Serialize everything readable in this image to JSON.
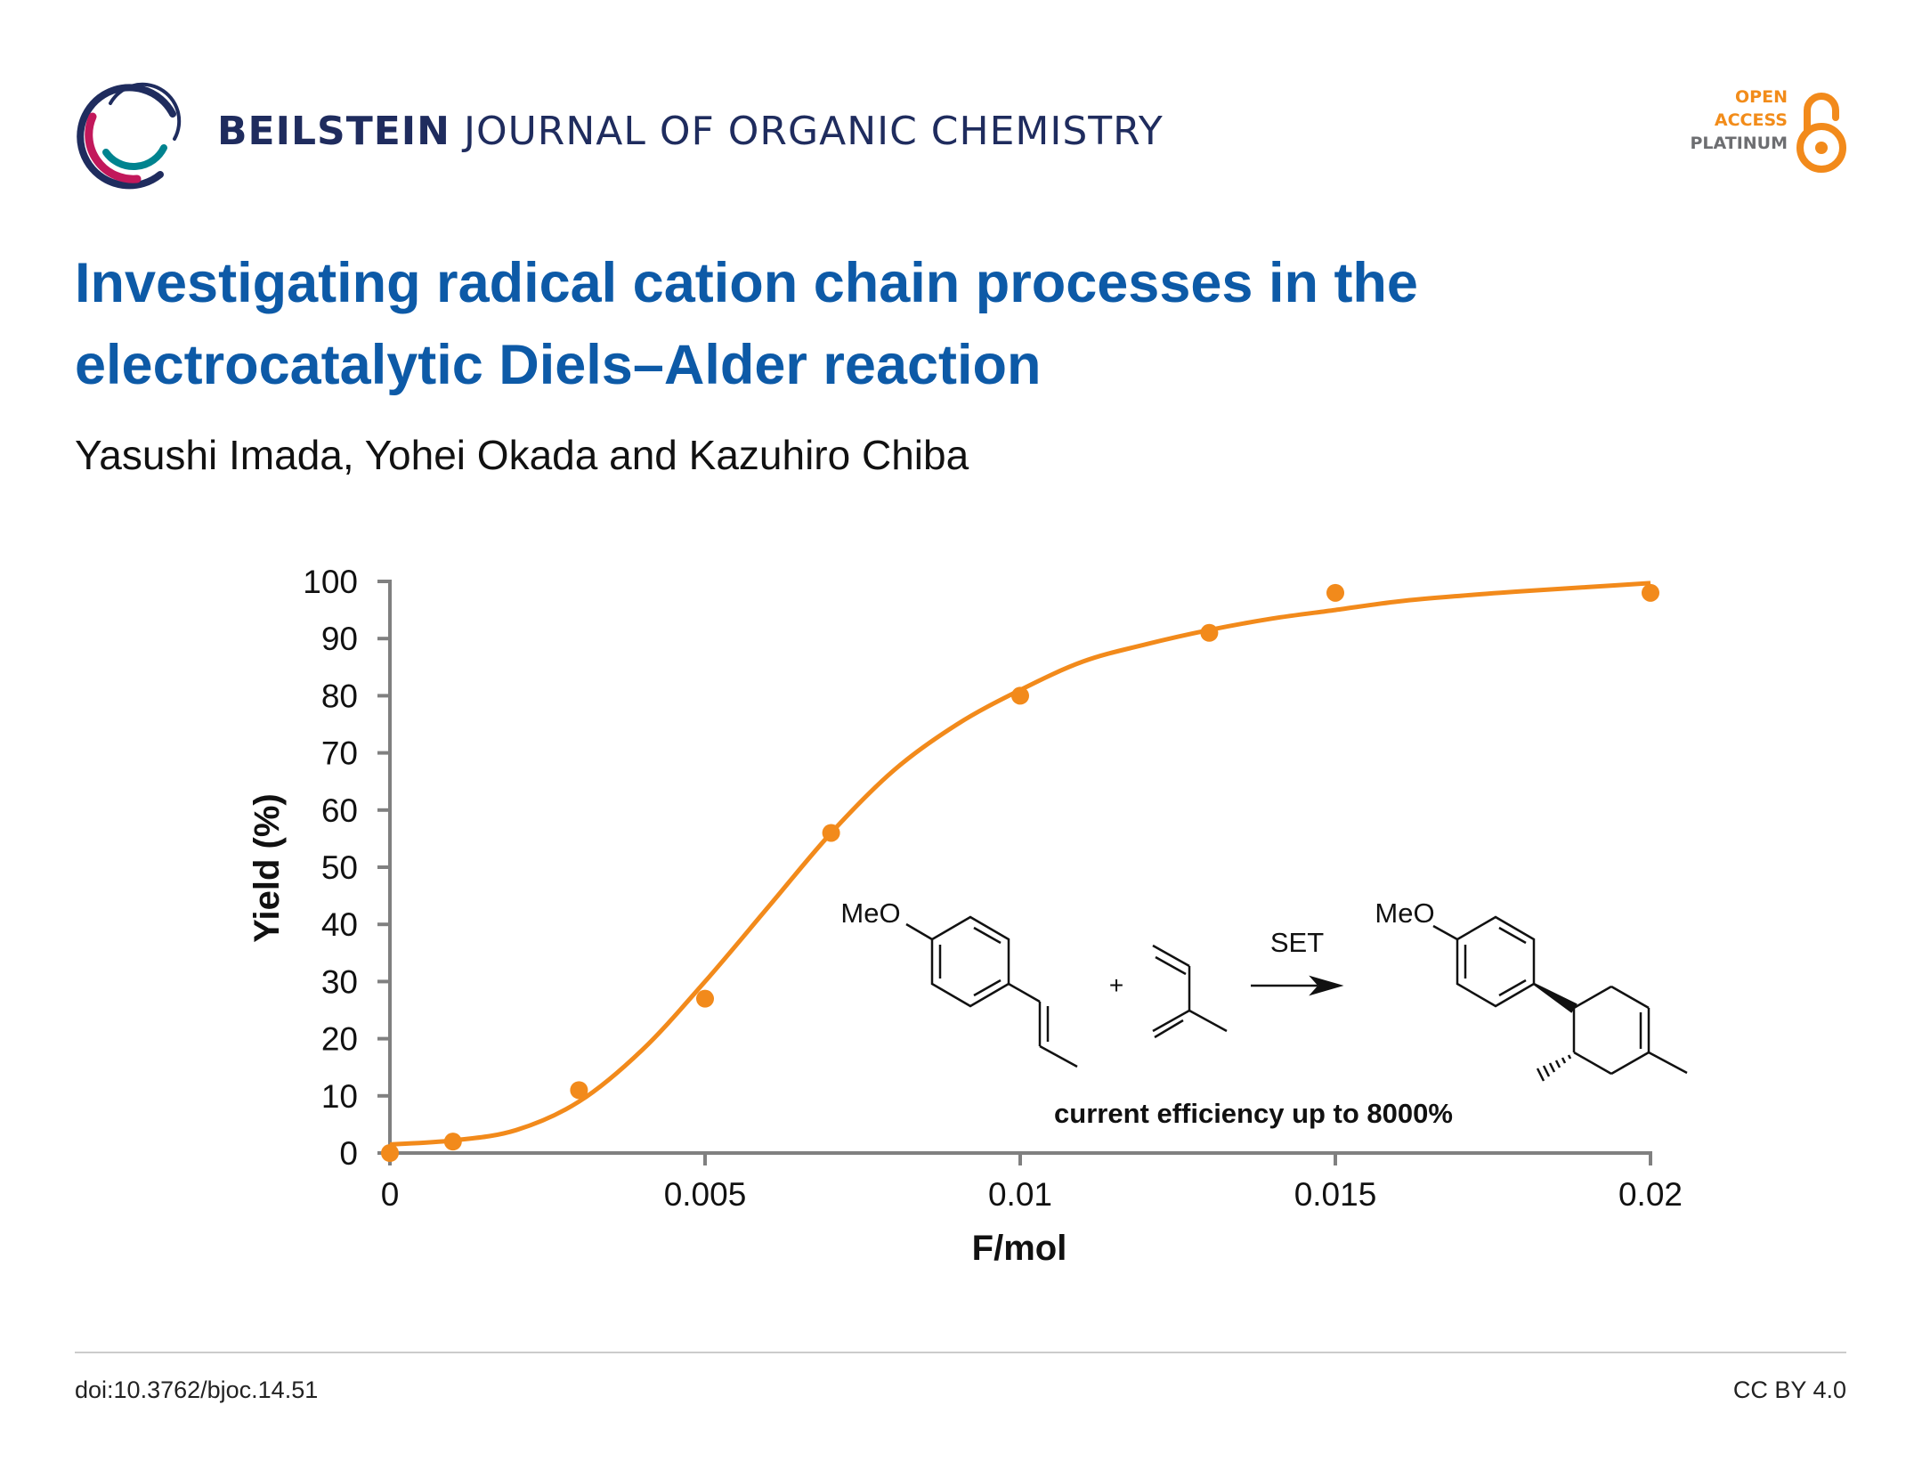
{
  "header": {
    "journal_bold": "BEILSTEIN",
    "journal_rest": "JOURNAL OF ORGANIC CHEMISTRY",
    "oa_line1": "OPEN",
    "oa_line2": "ACCESS",
    "oa_line3": "PLATINUM",
    "logo_icon": "beilstein-ring-logo",
    "oa_icon": "open-lock-icon"
  },
  "article": {
    "title_line1": "Investigating radical cation chain processes in the",
    "title_line2": "electrocatalytic Diels–Alder reaction",
    "authors": "Yasushi Imada, Yohei Okada and Kazuhiro Chiba"
  },
  "colors": {
    "accent": "#f28a1b",
    "title": "#0d5aa7",
    "journal": "#1f2c5e",
    "axis": "#808080"
  },
  "chart_data": {
    "type": "scatter",
    "xlabel": "F/mol",
    "ylabel": "Yield (%)",
    "xlim": [
      0,
      0.02
    ],
    "ylim": [
      0,
      100
    ],
    "x_ticks": [
      0,
      0.005,
      0.01,
      0.015,
      0.02
    ],
    "x_tick_labels": [
      "0",
      "0.005",
      "0.01",
      "0.015",
      "0.02"
    ],
    "y_ticks": [
      0,
      10,
      20,
      30,
      40,
      50,
      60,
      70,
      80,
      90,
      100
    ],
    "y_tick_labels": [
      "0",
      "10",
      "20",
      "30",
      "40",
      "50",
      "60",
      "70",
      "80",
      "90",
      "100"
    ],
    "grid": false,
    "points": {
      "x": [
        0,
        0.001,
        0.003,
        0.005,
        0.007,
        0.01,
        0.013,
        0.015,
        0.02
      ],
      "y": [
        0,
        2,
        11,
        27,
        56,
        80,
        91,
        98,
        98
      ]
    },
    "fit_curve": {
      "x": [
        0,
        0.001,
        0.002,
        0.003,
        0.004,
        0.005,
        0.006,
        0.007,
        0.008,
        0.009,
        0.01,
        0.011,
        0.012,
        0.013,
        0.014,
        0.015,
        0.016,
        0.017,
        0.018,
        0.019,
        0.02
      ],
      "y": [
        1.5,
        2.2,
        4,
        9,
        18,
        30,
        43,
        56,
        67,
        75,
        81,
        86,
        89,
        91.5,
        93.5,
        95,
        96.5,
        97.5,
        98.3,
        99,
        99.7
      ]
    },
    "annotations": {
      "reactant1_group": "MeO",
      "plus": "+",
      "arrow_label": "SET",
      "product_group": "MeO",
      "caption": "current efficiency up to 8000%"
    }
  },
  "footer": {
    "doi": "doi:10.3762/bjoc.14.51",
    "license": "CC BY 4.0"
  }
}
